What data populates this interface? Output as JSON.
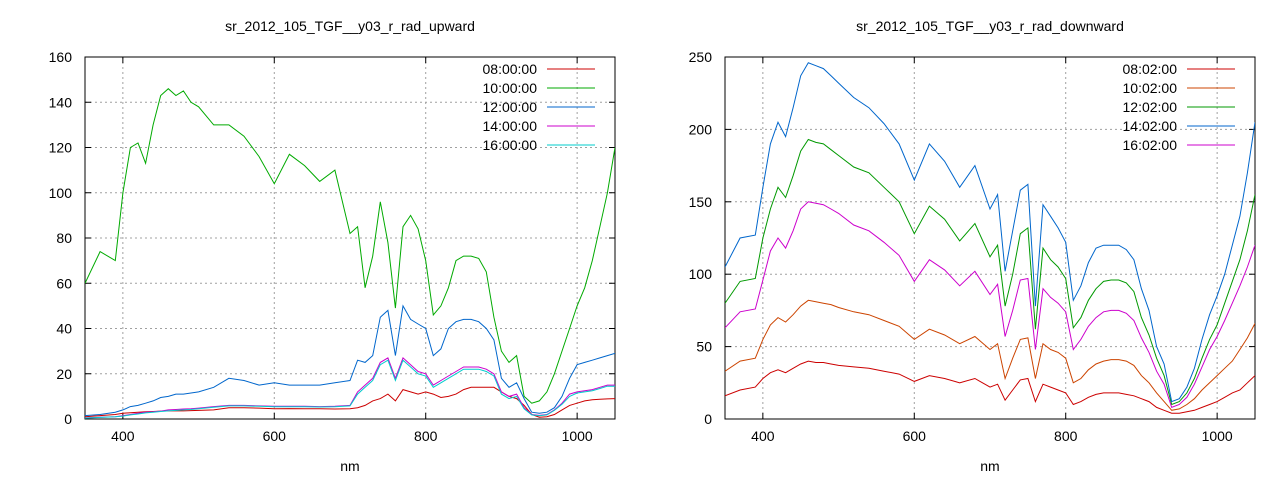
{
  "chart_data": [
    {
      "type": "line",
      "title": "sr_2012_105_TGF__y03_r_rad_upward",
      "xlabel": "nm",
      "ylabel": "",
      "xlim": [
        350,
        1050
      ],
      "ylim": [
        0,
        160
      ],
      "xticks": [
        400,
        600,
        800,
        1000
      ],
      "yticks": [
        0,
        20,
        40,
        60,
        80,
        100,
        120,
        140,
        160
      ],
      "grid": true,
      "legend_position": "top-right",
      "x": [
        350,
        370,
        390,
        400,
        410,
        420,
        430,
        440,
        450,
        460,
        470,
        480,
        490,
        500,
        520,
        540,
        560,
        580,
        600,
        620,
        640,
        660,
        680,
        700,
        710,
        720,
        730,
        740,
        750,
        760,
        770,
        780,
        790,
        800,
        810,
        820,
        830,
        840,
        850,
        860,
        870,
        880,
        890,
        900,
        910,
        920,
        930,
        940,
        950,
        960,
        970,
        980,
        990,
        1000,
        1010,
        1020,
        1030,
        1040,
        1050
      ],
      "series": [
        {
          "name": "08:00:00",
          "color": "#cc0000",
          "values": [
            1,
            1.5,
            2,
            2.5,
            2.8,
            3,
            3.2,
            3.3,
            3.5,
            3.6,
            3.6,
            3.6,
            3.7,
            3.8,
            4,
            5,
            5,
            4.8,
            4.5,
            4.6,
            4.5,
            4.5,
            4.4,
            4.5,
            5,
            6,
            8,
            9,
            11,
            8,
            13,
            12,
            11,
            12,
            11,
            9.5,
            10,
            11,
            13,
            14,
            14,
            14,
            14,
            12,
            10,
            9,
            6,
            2,
            0.8,
            1,
            2,
            4,
            6,
            7,
            8,
            8.5,
            8.7,
            8.9,
            9
          ]
        },
        {
          "name": "10:00:00",
          "color": "#00aa00",
          "values": [
            60,
            74,
            70,
            100,
            120,
            122,
            113,
            130,
            143,
            146,
            143,
            145,
            140,
            138,
            130,
            130,
            125,
            116,
            104,
            117,
            112,
            105,
            110,
            82,
            85,
            58,
            72,
            96,
            78,
            49,
            85,
            90,
            84,
            70,
            46,
            50,
            58,
            70,
            72,
            72,
            71,
            65,
            45,
            30,
            25,
            28,
            10,
            7,
            8,
            12,
            20,
            30,
            40,
            50,
            58,
            70,
            85,
            100,
            120
          ]
        },
        {
          "name": "12:00:00",
          "color": "#0066cc",
          "values": [
            1.5,
            2,
            3,
            4,
            5.5,
            6,
            7,
            8,
            9.5,
            10,
            11,
            11,
            11.5,
            12,
            14,
            18,
            17,
            15,
            16,
            15,
            15,
            15,
            16,
            17,
            26,
            25,
            28,
            45,
            48,
            28,
            50,
            44,
            42,
            40,
            28,
            31,
            40,
            43,
            44,
            44,
            43,
            40,
            35,
            18,
            14,
            16,
            9,
            3,
            2.5,
            3,
            5,
            10,
            18,
            24,
            25,
            26,
            27,
            28,
            29
          ]
        },
        {
          "name": "14:00:00",
          "color": "#cc00cc",
          "values": [
            0.5,
            0.8,
            1,
            1.5,
            2,
            2.5,
            3,
            3.2,
            3.5,
            4,
            4.2,
            4.4,
            4.5,
            4.8,
            5.5,
            6,
            6,
            5.8,
            5.6,
            5.6,
            5.6,
            5.5,
            5.6,
            6,
            12,
            15,
            18,
            25,
            27,
            18,
            27,
            24,
            21,
            20,
            15,
            17,
            19,
            21,
            23,
            23,
            23,
            22,
            20,
            12,
            10,
            11,
            5,
            2,
            1.6,
            2,
            4,
            7,
            11,
            12,
            12.5,
            13,
            14,
            15,
            15
          ]
        },
        {
          "name": "16:00:00",
          "color": "#00cccc",
          "values": [
            0.4,
            0.7,
            1,
            1.3,
            1.8,
            2.2,
            2.7,
            3,
            3.3,
            3.6,
            3.8,
            4,
            4.2,
            4.5,
            5.2,
            5.8,
            5.8,
            5.6,
            5.4,
            5.4,
            5.4,
            5.3,
            5.4,
            5.8,
            11,
            14,
            17,
            24,
            26,
            17,
            26,
            23,
            20,
            19,
            14,
            16,
            18,
            20,
            22,
            22,
            22,
            21,
            19,
            11,
            9,
            10,
            4.5,
            1.8,
            1.4,
            1.8,
            3.8,
            6.5,
            10,
            11.5,
            12,
            12.5,
            13.5,
            14.5,
            14.5
          ]
        }
      ]
    },
    {
      "type": "line",
      "title": "sr_2012_105_TGF__y03_r_rad_downward",
      "xlabel": "nm",
      "ylabel": "",
      "xlim": [
        350,
        1050
      ],
      "ylim": [
        0,
        250
      ],
      "xticks": [
        400,
        600,
        800,
        1000
      ],
      "yticks": [
        0,
        50,
        100,
        150,
        200,
        250
      ],
      "grid": true,
      "legend_position": "top-right",
      "x": [
        350,
        370,
        390,
        400,
        410,
        420,
        430,
        440,
        450,
        460,
        470,
        480,
        490,
        500,
        520,
        540,
        560,
        580,
        600,
        620,
        640,
        660,
        680,
        700,
        710,
        720,
        730,
        740,
        750,
        760,
        770,
        780,
        790,
        800,
        810,
        820,
        830,
        840,
        850,
        860,
        870,
        880,
        890,
        900,
        910,
        920,
        930,
        940,
        950,
        960,
        970,
        980,
        990,
        1000,
        1010,
        1020,
        1030,
        1040,
        1050
      ],
      "series": [
        {
          "name": "08:02:00",
          "color": "#cc0000",
          "values": [
            16,
            20,
            22,
            28,
            32,
            34,
            32,
            35,
            38,
            40,
            39,
            39,
            38,
            37,
            36,
            35,
            33,
            31,
            26,
            30,
            28,
            25,
            28,
            22,
            24,
            13,
            20,
            27,
            28,
            12,
            24,
            22,
            20,
            18,
            10,
            12,
            15,
            17,
            18,
            18,
            18,
            17,
            16,
            14,
            12,
            8,
            6,
            4,
            4,
            5,
            6,
            8,
            10,
            12,
            15,
            18,
            20,
            25,
            30
          ]
        },
        {
          "name": "10:02:00",
          "color": "#cc4400",
          "values": [
            33,
            40,
            42,
            55,
            65,
            70,
            67,
            72,
            78,
            82,
            81,
            80,
            79,
            77,
            74,
            72,
            68,
            64,
            55,
            62,
            58,
            52,
            57,
            48,
            52,
            28,
            42,
            55,
            56,
            28,
            52,
            48,
            46,
            42,
            25,
            28,
            34,
            38,
            40,
            41,
            41,
            40,
            37,
            30,
            25,
            18,
            12,
            6,
            7,
            10,
            14,
            20,
            25,
            30,
            35,
            40,
            48,
            56,
            66
          ]
        },
        {
          "name": "12:02:00",
          "color": "#009900",
          "values": [
            80,
            95,
            97,
            125,
            145,
            160,
            153,
            168,
            185,
            193,
            191,
            190,
            186,
            182,
            174,
            170,
            160,
            150,
            128,
            147,
            138,
            123,
            135,
            112,
            120,
            78,
            100,
            128,
            132,
            62,
            118,
            110,
            105,
            97,
            63,
            70,
            82,
            90,
            95,
            96,
            96,
            94,
            88,
            70,
            58,
            42,
            30,
            10,
            12,
            18,
            28,
            42,
            55,
            65,
            80,
            95,
            110,
            130,
            155
          ]
        },
        {
          "name": "14:02:00",
          "color": "#0066cc",
          "values": [
            105,
            125,
            127,
            160,
            190,
            205,
            195,
            215,
            237,
            246,
            244,
            242,
            237,
            232,
            222,
            215,
            204,
            190,
            165,
            190,
            178,
            160,
            175,
            145,
            155,
            102,
            130,
            158,
            162,
            78,
            148,
            140,
            132,
            122,
            82,
            92,
            108,
            118,
            120,
            120,
            120,
            117,
            110,
            90,
            75,
            50,
            38,
            12,
            14,
            22,
            35,
            55,
            72,
            85,
            100,
            120,
            140,
            170,
            205
          ]
        },
        {
          "name": "16:02:00",
          "color": "#cc00cc",
          "values": [
            63,
            74,
            76,
            96,
            116,
            125,
            118,
            130,
            145,
            150,
            149,
            148,
            145,
            142,
            134,
            130,
            122,
            113,
            95,
            110,
            103,
            92,
            102,
            86,
            93,
            57,
            75,
            96,
            97,
            48,
            90,
            84,
            80,
            74,
            48,
            55,
            64,
            70,
            74,
            75,
            75,
            73,
            68,
            56,
            46,
            33,
            24,
            8,
            10,
            15,
            24,
            36,
            48,
            57,
            68,
            80,
            92,
            105,
            120
          ]
        }
      ]
    }
  ]
}
